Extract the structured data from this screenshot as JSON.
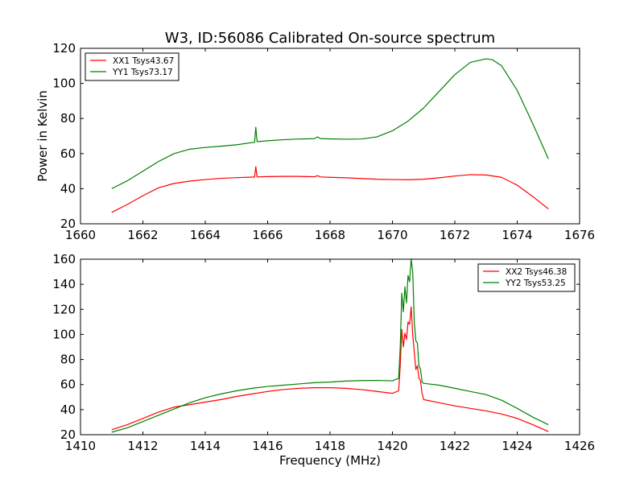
{
  "chart_data": [
    {
      "type": "line",
      "title": "W3, ID:56086 Calibrated On-source spectrum",
      "xlabel": "",
      "ylabel": "Power in Kelvin",
      "xlim": [
        1660,
        1676
      ],
      "ylim": [
        20,
        120
      ],
      "xticks": [
        1660,
        1662,
        1664,
        1666,
        1668,
        1670,
        1672,
        1674,
        1676
      ],
      "yticks": [
        20,
        40,
        60,
        80,
        100,
        120
      ],
      "grid": false,
      "legend_position": "top-left",
      "series": [
        {
          "name": "XX1 Tsys43.67",
          "color": "#ff0000",
          "x": [
            1661.0,
            1661.5,
            1662.0,
            1662.5,
            1663.0,
            1663.5,
            1664.0,
            1664.5,
            1665.0,
            1665.5,
            1665.58,
            1665.62,
            1665.66,
            1666.0,
            1666.5,
            1667.0,
            1667.5,
            1667.6,
            1667.7,
            1668.0,
            1668.5,
            1669.0,
            1669.5,
            1670.0,
            1670.5,
            1671.0,
            1671.5,
            1672.0,
            1672.5,
            1673.0,
            1673.5,
            1674.0,
            1674.5,
            1675.0
          ],
          "y": [
            26.5,
            31.0,
            36.0,
            40.5,
            43.0,
            44.3,
            45.2,
            45.9,
            46.3,
            46.6,
            46.6,
            52.5,
            46.7,
            46.9,
            47.0,
            47.0,
            46.8,
            47.4,
            46.7,
            46.5,
            46.2,
            45.8,
            45.4,
            45.2,
            45.1,
            45.4,
            46.2,
            47.2,
            48.0,
            47.8,
            46.5,
            42.0,
            35.5,
            28.5
          ]
        },
        {
          "name": "YY1 Tsys73.17",
          "color": "#008000",
          "x": [
            1661.0,
            1661.5,
            1662.0,
            1662.5,
            1663.0,
            1663.5,
            1664.0,
            1664.5,
            1665.0,
            1665.5,
            1665.58,
            1665.62,
            1665.66,
            1666.0,
            1666.5,
            1667.0,
            1667.5,
            1667.6,
            1667.7,
            1668.0,
            1668.5,
            1669.0,
            1669.5,
            1670.0,
            1670.5,
            1671.0,
            1671.5,
            1672.0,
            1672.5,
            1673.0,
            1673.2,
            1673.5,
            1674.0,
            1674.5,
            1675.0
          ],
          "y": [
            40.0,
            44.5,
            50.0,
            55.5,
            60.0,
            62.5,
            63.5,
            64.2,
            65.0,
            66.3,
            66.4,
            75.0,
            66.8,
            67.3,
            67.9,
            68.3,
            68.5,
            69.5,
            68.5,
            68.4,
            68.2,
            68.3,
            69.5,
            73.0,
            78.5,
            86.0,
            95.5,
            105.0,
            112.0,
            114.0,
            113.5,
            110.0,
            96.0,
            77.0,
            57.0
          ]
        }
      ]
    },
    {
      "type": "line",
      "title": "",
      "xlabel": "Frequency (MHz)",
      "ylabel": "",
      "xlim": [
        1410,
        1426
      ],
      "ylim": [
        20,
        160
      ],
      "xticks": [
        1410,
        1412,
        1414,
        1416,
        1418,
        1420,
        1422,
        1424,
        1426
      ],
      "yticks": [
        20,
        40,
        60,
        80,
        100,
        120,
        140,
        160
      ],
      "grid": false,
      "legend_position": "top-right",
      "series": [
        {
          "name": "XX2 Tsys46.38",
          "color": "#ff0000",
          "x": [
            1411.0,
            1411.5,
            1412.0,
            1412.5,
            1413.0,
            1413.5,
            1414.0,
            1414.5,
            1415.0,
            1415.5,
            1416.0,
            1416.5,
            1417.0,
            1417.5,
            1418.0,
            1418.5,
            1419.0,
            1419.5,
            1420.0,
            1420.2,
            1420.25,
            1420.3,
            1420.35,
            1420.4,
            1420.45,
            1420.5,
            1420.55,
            1420.6,
            1420.65,
            1420.7,
            1420.75,
            1420.8,
            1420.85,
            1420.9,
            1420.95,
            1421.0,
            1421.5,
            1422.0,
            1422.5,
            1423.0,
            1423.5,
            1424.0,
            1424.5,
            1425.0
          ],
          "y": [
            24.0,
            28.0,
            33.0,
            38.0,
            42.0,
            44.0,
            46.0,
            48.0,
            50.5,
            52.5,
            54.5,
            56.0,
            57.0,
            57.5,
            57.5,
            57.0,
            56.0,
            54.5,
            53.0,
            55.0,
            75.0,
            104.0,
            90.0,
            101.0,
            96.0,
            110.0,
            108.0,
            122.0,
            100.0,
            86.0,
            72.0,
            75.0,
            65.0,
            63.0,
            53.0,
            48.0,
            45.5,
            43.0,
            41.0,
            39.0,
            36.5,
            33.0,
            28.0,
            22.5
          ]
        },
        {
          "name": "YY2 Tsys53.25",
          "color": "#008000",
          "x": [
            1411.0,
            1411.5,
            1412.0,
            1412.5,
            1413.0,
            1413.5,
            1414.0,
            1414.5,
            1415.0,
            1415.5,
            1416.0,
            1416.5,
            1417.0,
            1417.5,
            1418.0,
            1418.5,
            1419.0,
            1419.5,
            1420.0,
            1420.2,
            1420.25,
            1420.3,
            1420.35,
            1420.4,
            1420.45,
            1420.5,
            1420.55,
            1420.6,
            1420.65,
            1420.7,
            1420.75,
            1420.8,
            1420.85,
            1420.9,
            1420.95,
            1421.0,
            1421.5,
            1422.0,
            1422.5,
            1423.0,
            1423.5,
            1424.0,
            1424.5,
            1425.0
          ],
          "y": [
            22.0,
            25.5,
            30.5,
            35.5,
            40.5,
            45.5,
            49.5,
            52.5,
            55.0,
            57.0,
            58.5,
            59.5,
            60.5,
            61.5,
            62.0,
            62.8,
            63.2,
            63.3,
            63.0,
            65.0,
            90.0,
            133.0,
            118.0,
            138.0,
            125.0,
            147.0,
            142.0,
            160.0,
            150.0,
            110.0,
            95.0,
            93.0,
            75.0,
            72.0,
            62.0,
            61.0,
            59.5,
            57.0,
            54.5,
            52.0,
            47.5,
            41.0,
            34.0,
            28.0
          ]
        }
      ]
    }
  ]
}
